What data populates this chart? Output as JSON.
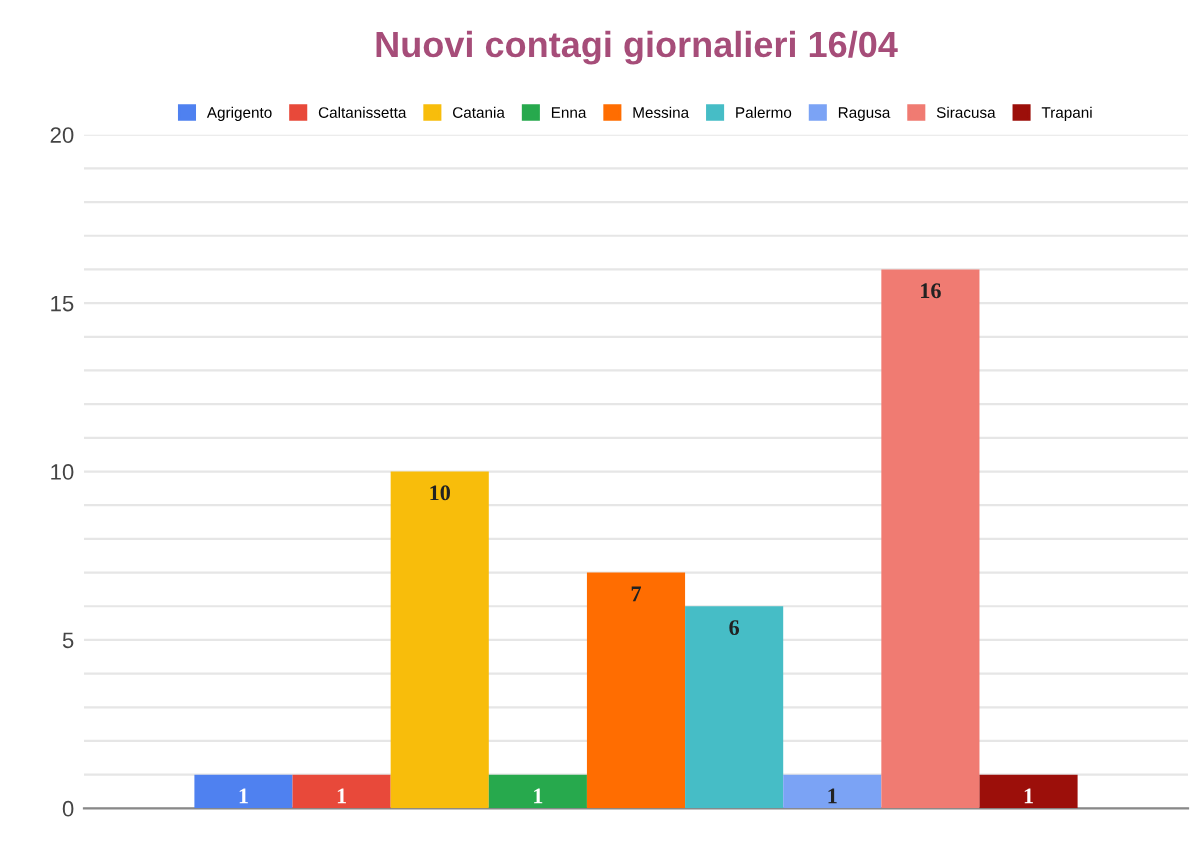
{
  "chart_data": {
    "type": "bar",
    "title": "Nuovi contagi giornalieri 16/04",
    "categories": [
      null
    ],
    "series": [
      {
        "name": "Agrigento",
        "color": "#4f81f0",
        "values": [
          1
        ]
      },
      {
        "name": "Caltanissetta",
        "color": "#e8493a",
        "values": [
          1
        ]
      },
      {
        "name": "Catania",
        "color": "#f8bd0b",
        "values": [
          10
        ]
      },
      {
        "name": "Enna",
        "color": "#27a94d",
        "values": [
          1
        ]
      },
      {
        "name": "Messina",
        "color": "#ff6d01",
        "values": [
          7
        ]
      },
      {
        "name": "Palermo",
        "color": "#46bdc6",
        "values": [
          6
        ]
      },
      {
        "name": "Ragusa",
        "color": "#7ba3f5",
        "values": [
          1
        ]
      },
      {
        "name": "Siracusa",
        "color": "#f07b72",
        "values": [
          16
        ]
      },
      {
        "name": "Trapani",
        "color": "#9c0f0a",
        "values": [
          1
        ]
      }
    ],
    "ylim": [
      0,
      20
    ],
    "yticks": [
      0,
      {
        "value": 1,
        "label": null
      },
      {
        "value": 2,
        "label": null
      },
      {
        "value": 3,
        "label": null
      },
      {
        "value": 4,
        "label": null
      },
      5,
      {
        "value": 6,
        "label": null
      },
      {
        "value": 7,
        "label": null
      },
      {
        "value": 8,
        "label": null
      },
      {
        "value": 9,
        "label": null
      },
      10,
      {
        "value": 11,
        "label": null
      },
      {
        "value": 12,
        "label": null
      },
      {
        "value": 13,
        "label": null
      },
      {
        "value": 14,
        "label": null
      },
      15,
      {
        "value": 16,
        "label": null
      },
      {
        "value": 17,
        "label": null
      },
      {
        "value": 18,
        "label": null
      },
      {
        "value": 19,
        "label": null
      },
      20
    ],
    "grid": "y",
    "legend": "top",
    "data_labels": true
  }
}
